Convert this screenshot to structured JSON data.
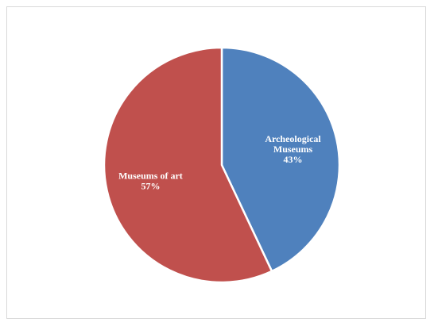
{
  "chart_data": {
    "type": "pie",
    "title": "",
    "slices": [
      {
        "label": "Archeological Museums",
        "label_lines": [
          "Archeological",
          "Museums"
        ],
        "value": 43,
        "value_label": "43%",
        "color": "#4f81bd"
      },
      {
        "label": "Museums of art",
        "label_lines": [
          "Museums of art"
        ],
        "value": 57,
        "value_label": "57%",
        "color": "#c0504d"
      }
    ],
    "start_angle_deg": 0,
    "direction": "clockwise",
    "legend": "none",
    "data_labels": "inside"
  }
}
